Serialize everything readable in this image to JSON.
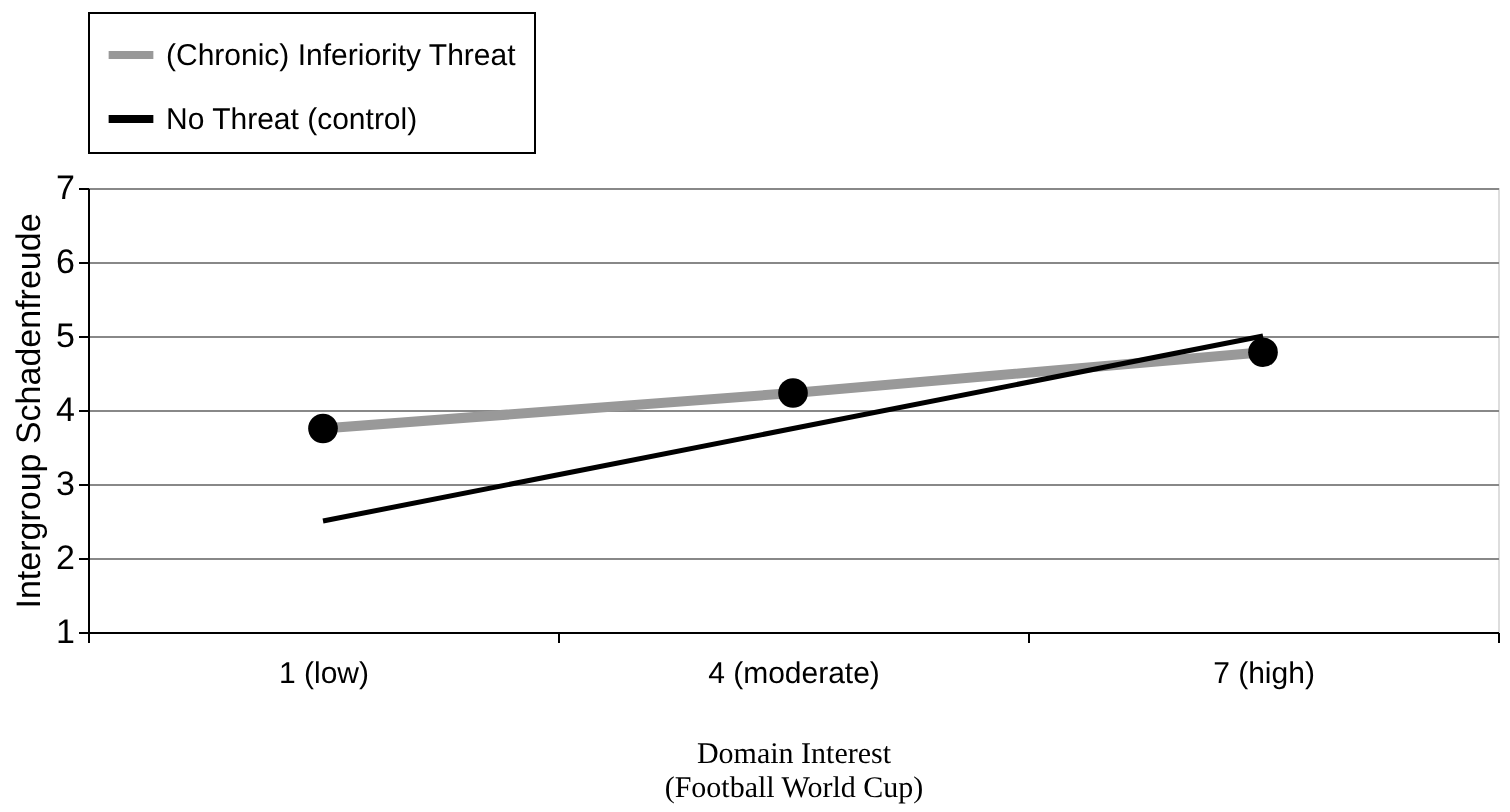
{
  "chart_data": {
    "type": "line",
    "categories": [
      "1 (low)",
      "4 (moderate)",
      "7 (high)"
    ],
    "series": [
      {
        "name": "(Chronic) Inferiority Threat",
        "color": "#999999",
        "marker": "circle",
        "values": [
          3.75,
          4.23,
          4.78
        ]
      },
      {
        "name": "No Threat (control)",
        "color": "#000000",
        "marker": "none",
        "values": [
          2.5,
          3.75,
          5.0
        ]
      }
    ],
    "xlabel": "Domain Interest\n(Football World Cup)",
    "ylabel": "Intergroup Schadenfreude",
    "ylim": [
      1,
      7
    ],
    "yticks": [
      1,
      2,
      3,
      4,
      5,
      6,
      7
    ],
    "grid": "y",
    "legend": "top"
  }
}
